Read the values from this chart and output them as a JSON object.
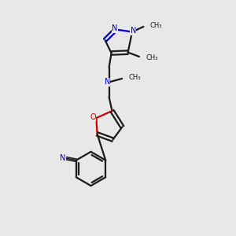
{
  "background_color": "#e8e8e8",
  "bond_color": "#1a1a1a",
  "N_color": "#0000cc",
  "O_color": "#cc0000",
  "figsize": [
    3.0,
    3.0
  ],
  "dpi": 100,
  "xlim": [
    0,
    10
  ],
  "ylim": [
    0,
    10
  ]
}
